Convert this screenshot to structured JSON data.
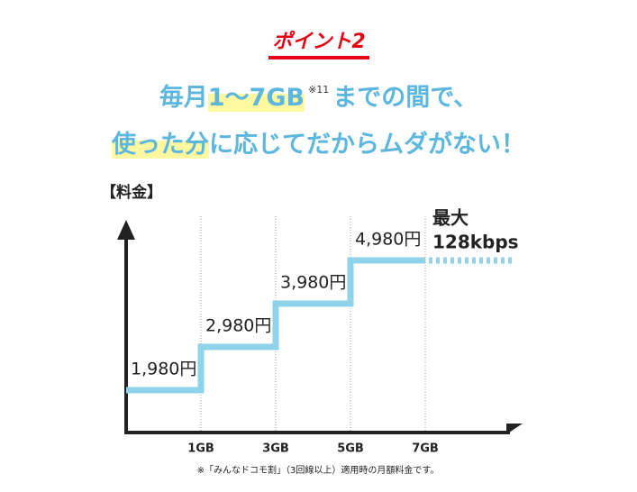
{
  "badge": "ポイント2",
  "headline": {
    "line1": [
      "毎月",
      "1〜7GB",
      "※11",
      "までの間で、"
    ],
    "line2": [
      "使った分",
      "に応じてだからムダがない！"
    ]
  },
  "chart_data": {
    "type": "step",
    "y_label": "【料金】",
    "categories": [
      "1GB",
      "3GB",
      "5GB",
      "7GB"
    ],
    "values": [
      1980,
      2980,
      3980,
      4980
    ],
    "value_labels": [
      "1,980円",
      "2,980円",
      "3,980円",
      "4,980円"
    ],
    "ylim": [
      1000,
      6000
    ],
    "color": "#8fd3ea",
    "annotations": [
      "最大",
      "128kbps"
    ],
    "footnote": "※「みんなドコモ割」（3回線以上）適用時の月額料金です。"
  }
}
